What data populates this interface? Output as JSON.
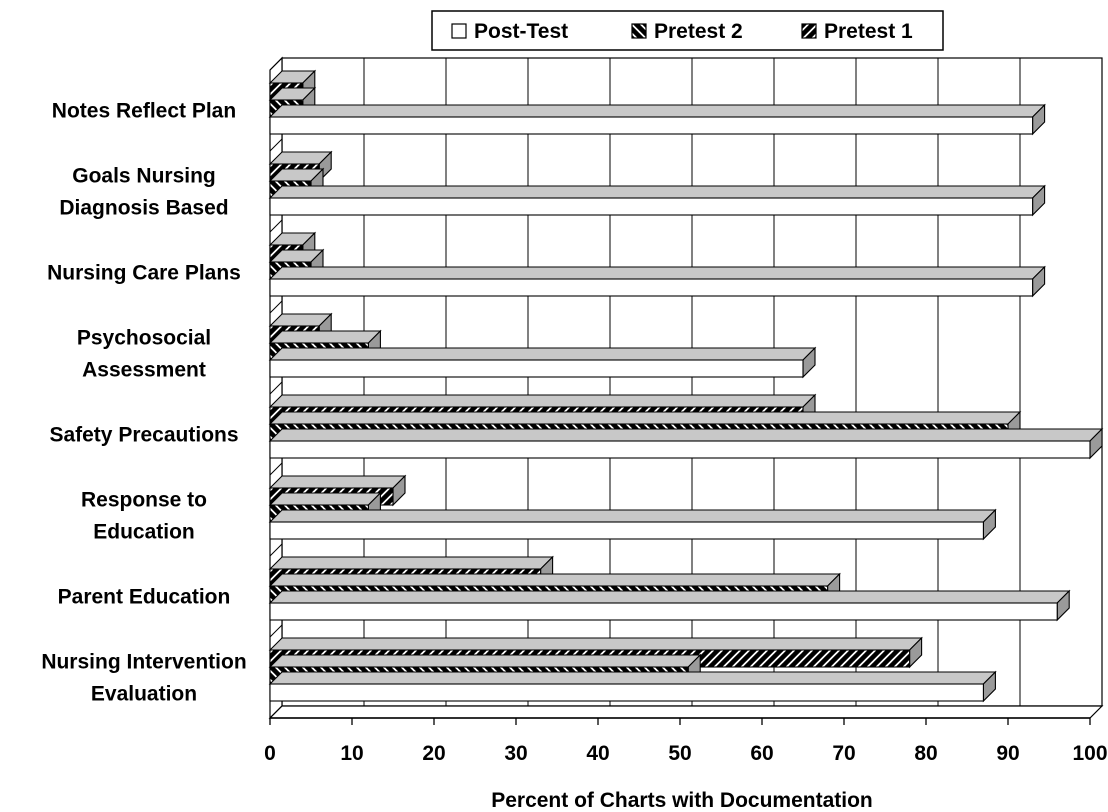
{
  "chart_data": {
    "type": "bar",
    "orientation": "horizontal",
    "style": "3d",
    "categories": [
      [
        "Notes Reflect Plan"
      ],
      [
        "Goals Nursing",
        "Diagnosis Based"
      ],
      [
        "Nursing Care Plans"
      ],
      [
        "Psychosocial",
        "Assessment"
      ],
      [
        "Safety Precautions"
      ],
      [
        "Response to",
        "Education"
      ],
      [
        "Parent Education"
      ],
      [
        "Nursing Intervention",
        "Evaluation"
      ]
    ],
    "series": [
      {
        "name": "Pretest 1",
        "pattern": "diag-up",
        "values": [
          4,
          6,
          4,
          6,
          65,
          15,
          33,
          78
        ]
      },
      {
        "name": "Pretest 2",
        "pattern": "diag-down",
        "values": [
          4,
          5,
          5,
          12,
          90,
          12,
          68,
          51
        ]
      },
      {
        "name": "Post-Test",
        "pattern": "white",
        "values": [
          93,
          93,
          93,
          65,
          100,
          87,
          96,
          87
        ]
      }
    ],
    "legend_order": [
      "Post-Test",
      "Pretest 2",
      "Pretest 1"
    ],
    "legend_position": "top",
    "xlabel": "Percent of Charts with Documentation",
    "xlim": [
      0,
      100
    ],
    "xticks": [
      "0",
      "10",
      "20",
      "30",
      "40",
      "50",
      "60",
      "70",
      "80",
      "90",
      "100"
    ],
    "grid": true,
    "colors": {
      "dark": "#000000",
      "top_face": "#c8c8c8",
      "white": "#ffffff"
    }
  }
}
